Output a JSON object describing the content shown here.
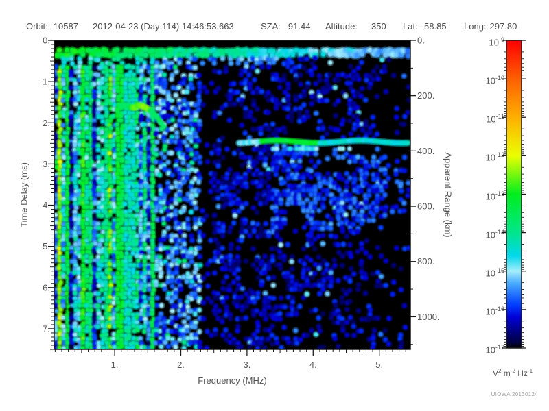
{
  "header": {
    "orbit_label": "Orbit:",
    "orbit_value": "10587",
    "datetime": "2012-04-23 (Day 114) 14:46:53.663",
    "sza_label": "SZA:",
    "sza_value": "91.44",
    "altitude_label": "Altitude:",
    "altitude_value": "350",
    "lat_label": "Lat:",
    "lat_value": "-58.85",
    "long_label": "Long:",
    "long_value": "297.80"
  },
  "watermark": "UIOWA 20130124",
  "colors": {
    "text": "#555555",
    "axis": "#1c1c1c",
    "background": "#ffffff",
    "plot_background": "#000000"
  },
  "chart_data": {
    "type": "heatmap",
    "description": "Radar sounder ionogram spectrogram: spectral density vs frequency and time delay. Dense blue/green/cyan ionospheric noise below ~1.6 MHz, bright green calibration stripe near 0.3 ms across all frequencies, ionospheric echo cusp near 1.1-1.7 MHz at 1.6-2.1 ms, surface reflection line near 2.45 ms for f > 2.9 MHz, sparse blue speckle on black elsewhere, near-empty vertical gap at 2.35-2.5 MHz.",
    "x_axis": {
      "label": "Frequency (MHz)",
      "min": 0.086,
      "max": 5.47,
      "major_ticks": [
        1,
        2,
        3,
        4,
        5
      ],
      "tick_labels": [
        "1.",
        "2.",
        "3.",
        "4.",
        "5."
      ],
      "minor_step": 0.1
    },
    "y_axis": {
      "label": "Time Delay (ms)",
      "min": 0,
      "max": 7.5,
      "direction": "down",
      "major_ticks": [
        0,
        1,
        2,
        3,
        4,
        5,
        6,
        7
      ],
      "tick_labels": [
        "0.",
        "1.",
        "2.",
        "3.",
        "4.",
        "5.",
        "6.",
        "7."
      ],
      "minor_step": 0.1
    },
    "y2_axis": {
      "label": "Apparent Range (km)",
      "min": 0,
      "max": 1118,
      "major_ticks": [
        0,
        200,
        400,
        600,
        800,
        1000
      ],
      "tick_labels": [
        "0.",
        "200.",
        "400.",
        "600.",
        "800.",
        "1000."
      ],
      "minor_step": 100
    },
    "colorbar": {
      "scale": "log",
      "base": "10",
      "max_exp": -9,
      "min_exp": -17,
      "tick_exponents": [
        -9,
        -10,
        -11,
        -12,
        -13,
        -14,
        -15,
        -16,
        -17
      ],
      "units_segments": [
        {
          "text": "V"
        },
        {
          "sup": "2"
        },
        {
          "text": " m"
        },
        {
          "sup": "-2"
        },
        {
          "text": " Hz"
        },
        {
          "sup": "-1"
        }
      ]
    },
    "colormap_stops": [
      {
        "t": 0.0,
        "c": [
          0,
          0,
          0
        ]
      },
      {
        "t": 0.02,
        "c": [
          0,
          0,
          70
        ]
      },
      {
        "t": 0.1,
        "c": [
          0,
          0,
          215
        ]
      },
      {
        "t": 0.14,
        "c": [
          0,
          60,
          255
        ]
      },
      {
        "t": 0.21,
        "c": [
          70,
          170,
          255
        ]
      },
      {
        "t": 0.25,
        "c": [
          165,
          238,
          252
        ]
      },
      {
        "t": 0.3,
        "c": [
          0,
          215,
          235
        ]
      },
      {
        "t": 0.375,
        "c": [
          0,
          230,
          140
        ]
      },
      {
        "t": 0.5,
        "c": [
          0,
          238,
          30
        ]
      },
      {
        "t": 0.625,
        "c": [
          235,
          255,
          0
        ]
      },
      {
        "t": 0.75,
        "c": [
          255,
          175,
          0
        ]
      },
      {
        "t": 0.875,
        "c": [
          255,
          95,
          0
        ]
      },
      {
        "t": 1.0,
        "c": [
          255,
          0,
          0
        ]
      }
    ],
    "features": {
      "seed": 20130124,
      "top_black_max_delay": 0.24,
      "cal_stripe": {
        "d1": 0.4,
        "e_left": -13.0,
        "e_slope": -0.44,
        "jitter": 0.7,
        "gap_prob": 0.07
      },
      "second_stripe": {
        "d1": 0.57,
        "f_max": 3.6,
        "prob": 0.5,
        "e": -15.4,
        "e_lowf": -14.4,
        "jitter": 0.9
      },
      "left_noise": {
        "f_max": 1.62,
        "e_base": -16.4,
        "e_spread": 2.4,
        "cell_jitter": 1.8,
        "dropout": 0.13,
        "bright_columns": [
          {
            "f": 0.2,
            "hw": 0.028,
            "e": -12.4
          },
          {
            "f": 0.31,
            "hw": 0.02,
            "e": -13.3
          },
          {
            "f": 0.52,
            "hw": 0.025,
            "e": -13.0
          },
          {
            "f": 0.63,
            "hw": 0.03,
            "e": -13.8
          },
          {
            "f": 0.86,
            "hw": 0.025,
            "e": -14.0
          },
          {
            "f": 1.08,
            "hw": 0.045,
            "e": -13.3
          },
          {
            "f": 1.24,
            "hw": 0.022,
            "e": -13.7
          },
          {
            "f": 1.57,
            "hw": 0.025,
            "e": -13.6
          }
        ],
        "cyan_band": {
          "f0": 1.14,
          "f1": 1.33,
          "e": -14.3,
          "jitter": 0.8,
          "dropout": 0.04
        }
      },
      "mid_speckle": {
        "f1": 2.33,
        "prob": 0.62,
        "e": -15.5,
        "jitter": 1.5,
        "cyan_prob": 0.08,
        "cyan_e": -14.4
      },
      "gap": {
        "f1": 2.5,
        "prob": 0.08,
        "e": -16.2
      },
      "right_sparse": {
        "prob0": 0.5,
        "prob_slope": -0.07,
        "e": -16.3,
        "jitter": 0.9,
        "bright_prob": 0.05,
        "bright_e": -15.2,
        "patch_threshold": 0.33,
        "patch_factor": 0.22,
        "far_f": 5.12,
        "far_factor": 0.5
      },
      "below_surface": {
        "f_min": 3.35,
        "d0": 2.55,
        "d1": 4.6,
        "prob_add": 0.3,
        "e": -15.9,
        "mid_f0": 2.5,
        "mid_f1": 3.35,
        "mid_d0": 2.6,
        "mid_d1": 5.8,
        "mid_prob_add": 0.15
      },
      "hook": {
        "f0": 1.08,
        "f1": 1.74,
        "flat_until": 1.4,
        "d_flat": 1.6,
        "rise": 0.5,
        "rise_pow": 1.8,
        "rise_span": 0.34,
        "bright_f0": 1.26,
        "bright_f1": 1.52,
        "bright_e": -12.5,
        "e": -13.5
      },
      "surface_echo": {
        "f0": 2.88,
        "f1": 5.47,
        "d": 2.46,
        "e_start": -14.9,
        "green_f0": 3.2,
        "green_f1": 4.1,
        "green_e": -13.2,
        "e": -14.5,
        "jitter": 0.4,
        "sub_line": {
          "d": 2.63,
          "f0": 3.3,
          "f1": 4.6,
          "prob": 0.5,
          "e": -14.9
        }
      },
      "edge_blob": {
        "f_max": 0.16,
        "d0": 2.9,
        "d1": 3.15,
        "e": -13.2
      }
    }
  }
}
